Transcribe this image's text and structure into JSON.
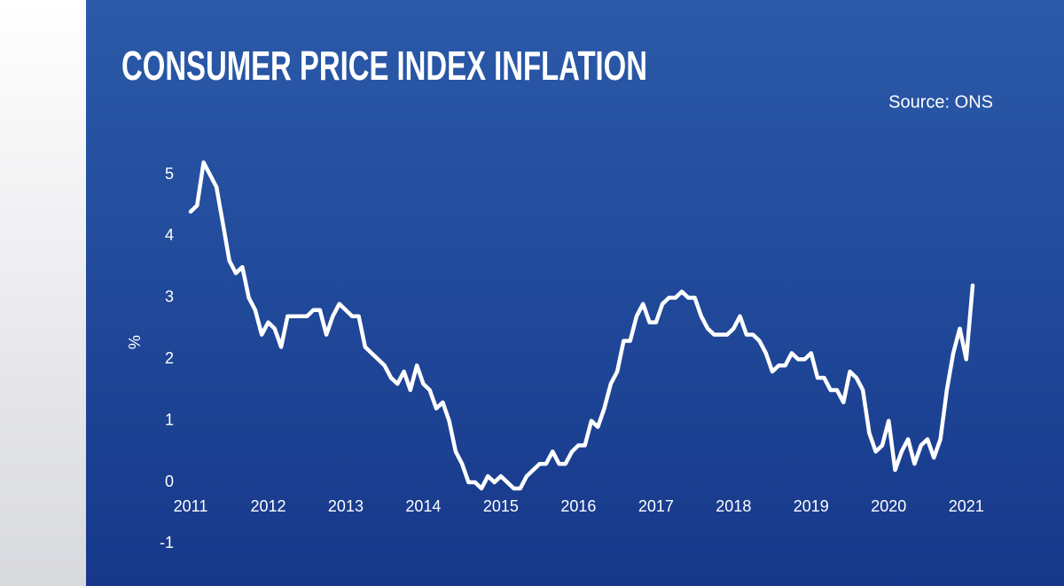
{
  "chart_data": {
    "type": "line",
    "title": "CONSUMER PRICE INDEX INFLATION",
    "source": "Source: ONS",
    "ylabel": "%",
    "x": [
      2011,
      2011.083,
      2011.167,
      2011.25,
      2011.333,
      2011.417,
      2011.5,
      2011.583,
      2011.667,
      2011.75,
      2011.833,
      2011.917,
      2012,
      2012.083,
      2012.167,
      2012.25,
      2012.333,
      2012.417,
      2012.5,
      2012.583,
      2012.667,
      2012.75,
      2012.833,
      2012.917,
      2013,
      2013.083,
      2013.167,
      2013.25,
      2013.333,
      2013.417,
      2013.5,
      2013.583,
      2013.667,
      2013.75,
      2013.833,
      2013.917,
      2014,
      2014.083,
      2014.167,
      2014.25,
      2014.333,
      2014.417,
      2014.5,
      2014.583,
      2014.667,
      2014.75,
      2014.833,
      2014.917,
      2015,
      2015.083,
      2015.167,
      2015.25,
      2015.333,
      2015.417,
      2015.5,
      2015.583,
      2015.667,
      2015.75,
      2015.833,
      2015.917,
      2016,
      2016.083,
      2016.167,
      2016.25,
      2016.333,
      2016.417,
      2016.5,
      2016.583,
      2016.667,
      2016.75,
      2016.833,
      2016.917,
      2017,
      2017.083,
      2017.167,
      2017.25,
      2017.333,
      2017.417,
      2017.5,
      2017.583,
      2017.667,
      2017.75,
      2017.833,
      2017.917,
      2018,
      2018.083,
      2018.167,
      2018.25,
      2018.333,
      2018.417,
      2018.5,
      2018.583,
      2018.667,
      2018.75,
      2018.833,
      2018.917,
      2019,
      2019.083,
      2019.167,
      2019.25,
      2019.333,
      2019.417,
      2019.5,
      2019.583,
      2019.667,
      2019.75,
      2019.833,
      2019.917,
      2020,
      2020.083,
      2020.167,
      2020.25,
      2020.333,
      2020.417,
      2020.5,
      2020.583,
      2020.667,
      2020.75,
      2020.833,
      2020.917,
      2021,
      2021.083
    ],
    "series": [
      {
        "name": "CPI",
        "color": "#ffffff",
        "values": [
          4.4,
          4.5,
          5.2,
          5.0,
          4.8,
          4.2,
          3.6,
          3.4,
          3.5,
          3.0,
          2.8,
          2.4,
          2.6,
          2.5,
          2.2,
          2.7,
          2.7,
          2.7,
          2.7,
          2.8,
          2.8,
          2.4,
          2.7,
          2.9,
          2.8,
          2.7,
          2.7,
          2.2,
          2.1,
          2.0,
          1.9,
          1.7,
          1.6,
          1.8,
          1.5,
          1.9,
          1.6,
          1.5,
          1.2,
          1.3,
          1.0,
          0.5,
          0.3,
          0.0,
          0.0,
          -0.1,
          0.1,
          0.0,
          0.1,
          0.0,
          -0.1,
          -0.1,
          0.1,
          0.2,
          0.3,
          0.3,
          0.5,
          0.3,
          0.3,
          0.5,
          0.6,
          0.6,
          1.0,
          0.9,
          1.2,
          1.6,
          1.8,
          2.3,
          2.3,
          2.7,
          2.9,
          2.6,
          2.6,
          2.9,
          3.0,
          3.0,
          3.1,
          3.0,
          3.0,
          2.7,
          2.5,
          2.4,
          2.4,
          2.4,
          2.5,
          2.7,
          2.4,
          2.4,
          2.3,
          2.1,
          1.8,
          1.9,
          1.9,
          2.1,
          2.0,
          2.0,
          2.1,
          1.7,
          1.7,
          1.5,
          1.5,
          1.3,
          1.8,
          1.7,
          1.5,
          0.8,
          0.5,
          0.6,
          1.0,
          0.2,
          0.5,
          0.7,
          0.3,
          0.6,
          0.7,
          0.4,
          0.7,
          1.5,
          2.1,
          2.5,
          2.0,
          3.2
        ]
      }
    ],
    "xlim": [
      2011,
      2021.083
    ],
    "xticks": [
      2011,
      2012,
      2013,
      2014,
      2015,
      2016,
      2017,
      2018,
      2019,
      2020,
      2021
    ],
    "ylim": [
      -1,
      5.3
    ],
    "yticks": [
      -1,
      0,
      1,
      2,
      3,
      4,
      5
    ],
    "grid": false
  }
}
